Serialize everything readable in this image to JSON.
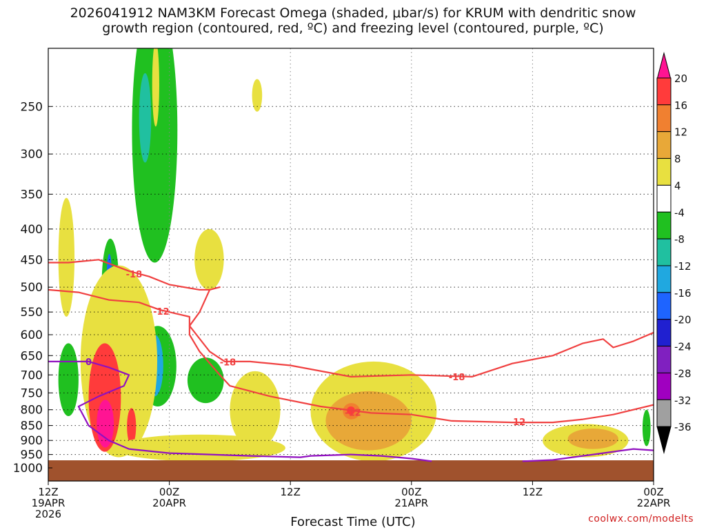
{
  "title": {
    "line1": "2026041912 NAM3KM Forecast Omega (shaded, μbar/s) for KRUM with dendritic snow",
    "line2": "growth region (contoured, red, ºC) and freezing level (contoured, purple, ºC)"
  },
  "xlabel": "Forecast Time (UTC)",
  "credit": "coolwx.com/modelts",
  "chart_data": {
    "type": "heatmap",
    "x_ticks": [
      {
        "hour": 0,
        "label1": "12Z",
        "label2": "19APR",
        "label3": "2026"
      },
      {
        "hour": 12,
        "label1": "00Z",
        "label2": "20APR",
        "label3": ""
      },
      {
        "hour": 24,
        "label1": "12Z",
        "label2": "",
        "label3": ""
      },
      {
        "hour": 36,
        "label1": "00Z",
        "label2": "21APR",
        "label3": ""
      },
      {
        "hour": 48,
        "label1": "12Z",
        "label2": "",
        "label3": ""
      },
      {
        "hour": 60,
        "label1": "00Z",
        "label2": "22APR",
        "label3": ""
      }
    ],
    "y_ticks": [
      250,
      300,
      350,
      400,
      450,
      500,
      550,
      600,
      650,
      700,
      750,
      800,
      850,
      900,
      950,
      1000
    ],
    "xlim": [
      0,
      60
    ],
    "ylim": [
      1000,
      200
    ],
    "colorbar": {
      "levels": [
        20,
        16,
        12,
        8,
        4,
        -4,
        -8,
        -12,
        -16,
        -20,
        -24,
        -28,
        -32,
        -36
      ],
      "colors": [
        "#ff1493",
        "#ff3b3b",
        "#f08030",
        "#e8a838",
        "#e8e040",
        "#ffffff",
        "#20c020",
        "#20c0a0",
        "#20a8e0",
        "#1e64ff",
        "#2020d0",
        "#8020c0",
        "#a000c0",
        "#a0a0a0",
        "#000000"
      ]
    },
    "omega_regions": [
      {
        "value": -10,
        "x": [
          8.3,
          12.8
        ],
        "p": [
          165,
          455
        ],
        "color": "#20c020"
      },
      {
        "value": -14,
        "x": [
          9.0,
          10.2
        ],
        "p": [
          220,
          310
        ],
        "color": "#20c0a0"
      },
      {
        "value": -10,
        "x": [
          5.3,
          7.0
        ],
        "p": [
          415,
          590
        ],
        "color": "#20c020"
      },
      {
        "value": -22,
        "x": [
          5.8,
          6.3
        ],
        "p": [
          440,
          520
        ],
        "color": "#1e64ff"
      },
      {
        "value": -10,
        "x": [
          9.0,
          12.7
        ],
        "p": [
          580,
          790
        ],
        "color": "#20c020"
      },
      {
        "value": -20,
        "x": [
          9.7,
          11.4
        ],
        "p": [
          600,
          760
        ],
        "color": "#20a8e0"
      },
      {
        "value": -10,
        "x": [
          13.8,
          17.4
        ],
        "p": [
          655,
          780
        ],
        "color": "#20c020"
      },
      {
        "value": -10,
        "x": [
          1.0,
          3.0
        ],
        "p": [
          620,
          820
        ],
        "color": "#20c020"
      },
      {
        "value": -10,
        "x": [
          58.9,
          59.7
        ],
        "p": [
          800,
          920
        ],
        "color": "#20c020"
      },
      {
        "value": 6,
        "x": [
          1.0,
          2.6
        ],
        "p": [
          355,
          560
        ],
        "color": "#e8e040"
      },
      {
        "value": 6,
        "x": [
          3.2,
          10.8
        ],
        "p": [
          460,
          960
        ],
        "color": "#e8e040"
      },
      {
        "value": 16,
        "x": [
          4.0,
          7.2
        ],
        "p": [
          620,
          940
        ],
        "color": "#ff3b3b"
      },
      {
        "value": 20,
        "x": [
          4.8,
          6.5
        ],
        "p": [
          770,
          925
        ],
        "color": "#ff1493"
      },
      {
        "value": 18,
        "x": [
          7.8,
          8.7
        ],
        "p": [
          795,
          915
        ],
        "color": "#ff3b3b"
      },
      {
        "value": 6,
        "x": [
          14.5,
          17.4
        ],
        "p": [
          400,
          505
        ],
        "color": "#e8e040"
      },
      {
        "value": 6,
        "x": [
          10.3,
          11.0
        ],
        "p": [
          195,
          270
        ],
        "color": "#e8e040"
      },
      {
        "value": 6,
        "x": [
          20.2,
          21.2
        ],
        "p": [
          225,
          255
        ],
        "color": "#e8e040"
      },
      {
        "value": 6,
        "x": [
          6.5,
          23.5
        ],
        "p": [
          880,
          975
        ],
        "color": "#e8e040"
      },
      {
        "value": 6,
        "x": [
          18.0,
          23.0
        ],
        "p": [
          690,
          930
        ],
        "color": "#e8e040"
      },
      {
        "value": 6,
        "x": [
          26.0,
          38.5
        ],
        "p": [
          665,
          975
        ],
        "color": "#e8e040"
      },
      {
        "value": 10,
        "x": [
          27.5,
          36.0
        ],
        "p": [
          745,
          935
        ],
        "color": "#e8a838"
      },
      {
        "value": 14,
        "x": [
          29.2,
          30.9
        ],
        "p": [
          780,
          830
        ],
        "color": "#f08030"
      },
      {
        "value": 18,
        "x": [
          29.6,
          30.4
        ],
        "p": [
          790,
          815
        ],
        "color": "#ff3b3b"
      },
      {
        "value": 6,
        "x": [
          49.0,
          57.5
        ],
        "p": [
          845,
          960
        ],
        "color": "#e8e040"
      },
      {
        "value": 10,
        "x": [
          51.5,
          56.5
        ],
        "p": [
          860,
          930
        ],
        "color": "#e8a838"
      }
    ],
    "isotherms": [
      {
        "label": "-18",
        "color": "#f04040",
        "points": [
          [
            0,
            455
          ],
          [
            2,
            455
          ],
          [
            5,
            450
          ],
          [
            8,
            470
          ],
          [
            10,
            480
          ],
          [
            12,
            495
          ],
          [
            15,
            505
          ],
          [
            16,
            505
          ],
          [
            17,
            500
          ],
          [
            16,
            505
          ],
          [
            15,
            550
          ],
          [
            14,
            580
          ],
          [
            16,
            640
          ],
          [
            17.5,
            665
          ],
          [
            20,
            665
          ],
          [
            24,
            675
          ],
          [
            30,
            705
          ],
          [
            36,
            700
          ],
          [
            42,
            705
          ],
          [
            46,
            670
          ],
          [
            50,
            650
          ],
          [
            53,
            620
          ],
          [
            55,
            610
          ],
          [
            56,
            630
          ],
          [
            58,
            615
          ],
          [
            60,
            595
          ]
        ]
      },
      {
        "label": "-12",
        "color": "#f04040",
        "points": [
          [
            0,
            505
          ],
          [
            3,
            510
          ],
          [
            6,
            525
          ],
          [
            9,
            530
          ],
          [
            11,
            545
          ],
          [
            13,
            555
          ],
          [
            14,
            560
          ],
          [
            14,
            600
          ],
          [
            15,
            640
          ],
          [
            17,
            700
          ],
          [
            18,
            730
          ],
          [
            22,
            760
          ],
          [
            27,
            790
          ],
          [
            32,
            810
          ],
          [
            36,
            815
          ],
          [
            40,
            835
          ],
          [
            46,
            840
          ],
          [
            50,
            840
          ],
          [
            53,
            830
          ],
          [
            56,
            815
          ],
          [
            60,
            785
          ]
        ]
      },
      {
        "label": "0",
        "color": "#9010c0",
        "points": [
          [
            0,
            665
          ],
          [
            2,
            665
          ],
          [
            4,
            665
          ],
          [
            6,
            680
          ],
          [
            8,
            700
          ],
          [
            7.5,
            730
          ],
          [
            5,
            760
          ],
          [
            3,
            790
          ],
          [
            4,
            850
          ],
          [
            6,
            900
          ],
          [
            8,
            930
          ],
          [
            12,
            945
          ],
          [
            20,
            955
          ],
          [
            25,
            960
          ],
          [
            26,
            955
          ],
          [
            30,
            950
          ],
          [
            33,
            955
          ],
          [
            36,
            965
          ],
          [
            38,
            975
          ]
        ]
      },
      {
        "label": "",
        "color": "#9010c0",
        "points": [
          [
            47,
            975
          ],
          [
            50,
            970
          ],
          [
            54,
            950
          ],
          [
            58,
            930
          ],
          [
            60,
            935
          ]
        ]
      }
    ]
  }
}
